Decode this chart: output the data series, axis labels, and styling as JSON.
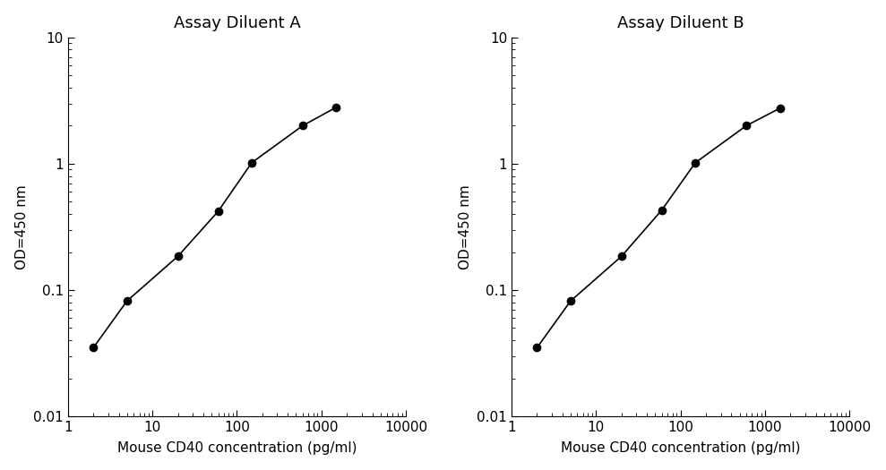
{
  "panel_A": {
    "title": "Assay Diluent A",
    "x": [
      2.0,
      5.0,
      20.0,
      60.0,
      150.0,
      600.0,
      1500.0
    ],
    "y": [
      0.035,
      0.082,
      0.185,
      0.42,
      1.02,
      2.0,
      2.8
    ]
  },
  "panel_B": {
    "title": "Assay Diluent B",
    "x": [
      2.0,
      5.0,
      20.0,
      60.0,
      150.0,
      600.0,
      1500.0
    ],
    "y": [
      0.035,
      0.082,
      0.185,
      0.43,
      1.02,
      2.0,
      2.75
    ]
  },
  "xlabel": "Mouse CD40 concentration (pg/ml)",
  "ylabel": "OD=450 nm",
  "xlim": [
    1.0,
    10000
  ],
  "ylim": [
    0.01,
    10
  ],
  "line_color": "#000000",
  "marker_color": "#000000",
  "marker_size": 6,
  "title_fontsize": 13,
  "label_fontsize": 11,
  "tick_fontsize": 11,
  "background_color": "#ffffff"
}
